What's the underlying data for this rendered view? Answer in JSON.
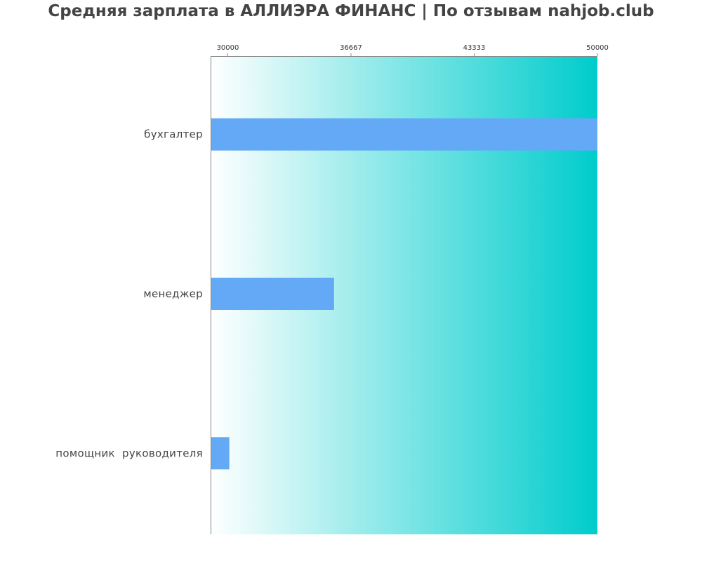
{
  "chart_data": {
    "type": "bar",
    "orientation": "horizontal",
    "title": "Средняя зарплата в АЛЛИЭРА ФИНАНС | По отзывам nahjob.club",
    "categories": [
      "бухгалтер",
      "менеджер",
      "помощник  руководителя"
    ],
    "values": [
      50000,
      35750,
      30083
    ],
    "xlim": [
      29070,
      50000
    ],
    "ticks": [
      30000,
      36667,
      43333,
      50000
    ],
    "tick_labels": [
      "30000",
      "36667",
      "43333",
      "50000"
    ],
    "tick_position": "top",
    "grid": false,
    "legend": "none",
    "colors": {
      "bar": "#63a9f5",
      "background_gradient_start": "#ffffff",
      "background_gradient_end": "#00cccc",
      "axis": "#888888",
      "text": "#444444"
    }
  }
}
